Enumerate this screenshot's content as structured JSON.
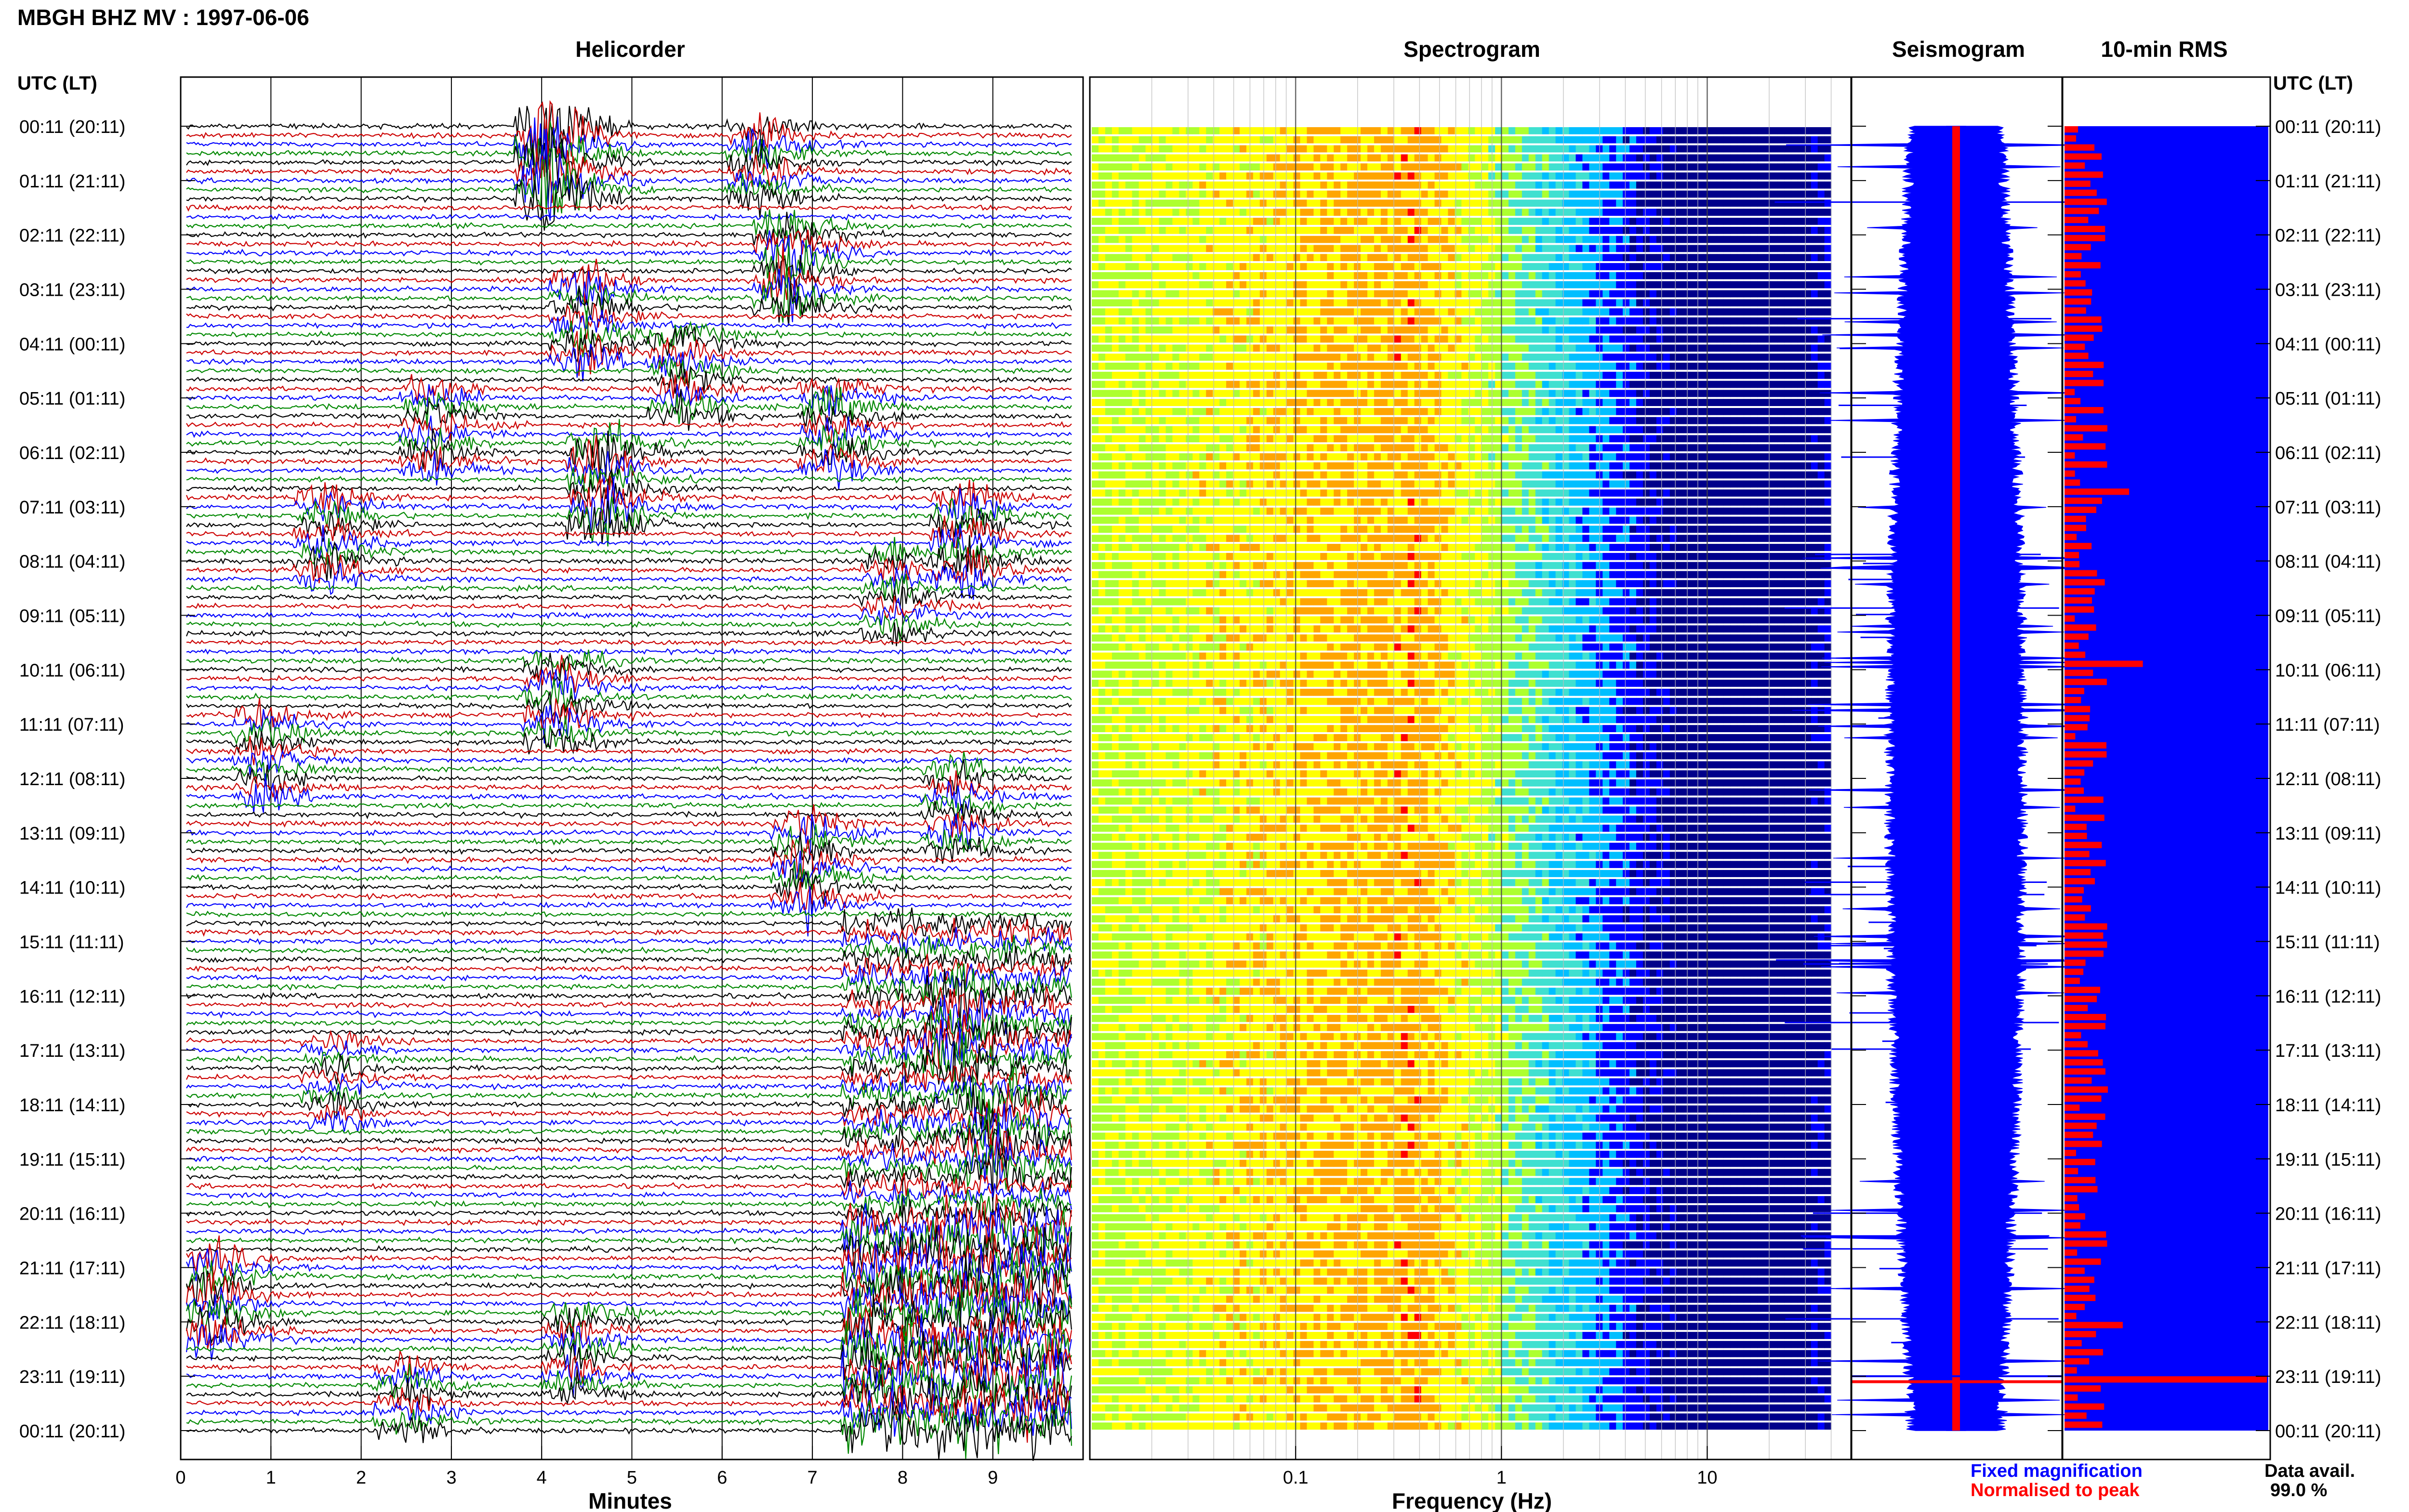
{
  "page": {
    "title": "MBGH BHZ MV : 1997-06-06"
  },
  "chart_data": [
    {
      "type": "line",
      "title": "Helicorder",
      "xlabel": "Minutes",
      "xlim": [
        0,
        10
      ],
      "x_ticks": [
        0,
        1,
        2,
        3,
        4,
        5,
        6,
        7,
        8,
        9
      ],
      "row_labels_left_header": "UTC (LT)",
      "row_labels": [
        "00:11 (20:11)",
        "01:11 (21:11)",
        "02:11 (22:11)",
        "03:11 (23:11)",
        "04:11 (00:11)",
        "05:11 (01:11)",
        "06:11 (02:11)",
        "07:11 (03:11)",
        "08:11 (04:11)",
        "09:11 (05:11)",
        "10:11 (06:11)",
        "11:11 (07:11)",
        "12:11 (08:11)",
        "13:11 (09:11)",
        "14:11 (10:11)",
        "15:11 (11:11)",
        "16:11 (12:11)",
        "17:11 (13:11)",
        "18:11 (14:11)",
        "19:11 (15:11)",
        "20:11 (16:11)",
        "21:11 (17:11)",
        "22:11 (18:11)",
        "23:11 (19:11)",
        "00:11 (20:11)"
      ],
      "traces_per_hour": 6,
      "trace_colors": [
        "#000000",
        "#cc0000",
        "#0000ff",
        "#008800"
      ],
      "grid": true
    },
    {
      "type": "heatmap",
      "title": "Spectrogram",
      "xlabel": "Frequency (Hz)",
      "x_scale": "log",
      "xlim": [
        0.01,
        50
      ],
      "x_tick_labels": [
        {
          "value": 0.1,
          "label": "0.1"
        },
        {
          "value": 1,
          "label": "1"
        },
        {
          "value": 10,
          "label": "10"
        }
      ],
      "peak_frequency_hz": 0.35,
      "colormap": [
        "#00008b",
        "#0000ff",
        "#00bfff",
        "#40e0d0",
        "#adff2f",
        "#ffff00",
        "#ffa500",
        "#ff0000"
      ]
    },
    {
      "type": "line",
      "title": "Seismogram",
      "series": [
        {
          "name": "Fixed magnification",
          "color": "#0000ff"
        },
        {
          "name": "Normalised to peak",
          "color": "#ff0000"
        }
      ]
    },
    {
      "type": "bar",
      "title": "10-min RMS",
      "row_labels_right_header": "UTC (LT)",
      "data_availability_label": "Data avail.",
      "data_availability_value": "99.0 %",
      "colors": {
        "fixed": "#0000ff",
        "normalised": "#ff0000"
      }
    }
  ],
  "legend": {
    "fixed": "Fixed magnification",
    "normalised": "Normalised to peak"
  },
  "events": [
    {
      "hour": 0,
      "minute": 4.1,
      "amp": 2.2,
      "color": "#cc0000"
    },
    {
      "hour": 0,
      "minute": 6.5,
      "amp": 0.9,
      "color": "#008800"
    },
    {
      "hour": 2,
      "minute": 6.8,
      "amp": 1.3,
      "color": "#cc0000"
    },
    {
      "hour": 3,
      "minute": 4.5,
      "amp": 1.0,
      "color": "#000000"
    },
    {
      "hour": 4,
      "minute": 5.6,
      "amp": 0.8,
      "color": "#000000"
    },
    {
      "hour": 5,
      "minute": 2.8,
      "amp": 0.8,
      "color": "#008800"
    },
    {
      "hour": 5,
      "minute": 7.3,
      "amp": 0.9,
      "color": "#008800"
    },
    {
      "hour": 6,
      "minute": 4.7,
      "amp": 1.3,
      "color": "#cc0000"
    },
    {
      "hour": 7,
      "minute": 8.8,
      "amp": 1.0,
      "color": "#008800"
    },
    {
      "hour": 7,
      "minute": 1.6,
      "amp": 0.8,
      "color": "#0000ff"
    },
    {
      "hour": 8,
      "minute": 8.0,
      "amp": 0.7,
      "color": "#0000ff"
    },
    {
      "hour": 10,
      "minute": 4.2,
      "amp": 0.9,
      "color": "#008800"
    },
    {
      "hour": 11,
      "minute": 0.9,
      "amp": 0.7,
      "color": "#cc0000"
    },
    {
      "hour": 12,
      "minute": 8.7,
      "amp": 0.8,
      "color": "#cc0000"
    },
    {
      "hour": 13,
      "minute": 7.0,
      "amp": 1.0,
      "color": "#000000"
    },
    {
      "hour": 16,
      "minute": 8.7,
      "amp": 1.0,
      "color": "#0000ff"
    },
    {
      "hour": 17,
      "minute": 1.7,
      "amp": 0.5,
      "color": "#000000"
    },
    {
      "hour": 18,
      "minute": 9.1,
      "amp": 0.9,
      "color": "#008800"
    },
    {
      "hour": 21,
      "minute": 0.3,
      "amp": 1.0,
      "color": "#cc0000"
    },
    {
      "hour": 22,
      "minute": 4.4,
      "amp": 0.8,
      "color": "#000000"
    },
    {
      "hour": 23,
      "minute": 2.5,
      "amp": 0.7,
      "color": "#0000ff"
    }
  ],
  "big_event": {
    "start_hour": 14.6,
    "end_hour": 25,
    "minute_start": 7.4,
    "minute_end": 10
  }
}
